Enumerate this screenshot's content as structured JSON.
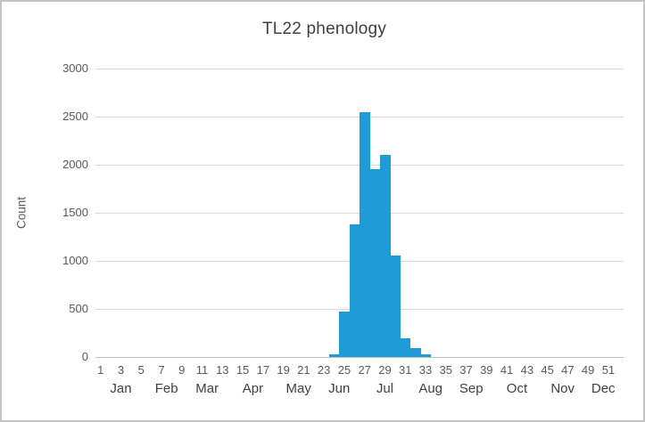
{
  "chart_data": {
    "type": "bar",
    "title": "TL22 phenology",
    "xlabel": "",
    "ylabel": "Count",
    "ylim": [
      0,
      3000
    ],
    "ytick_step": 500,
    "y_tick_labels": [
      "0",
      "500",
      "1000",
      "1500",
      "2000",
      "2500",
      "3000"
    ],
    "grid": "horizontal",
    "legend": "none",
    "bar_gap": 0,
    "bar_color": "#1f9cd7",
    "categories": [
      1,
      2,
      3,
      4,
      5,
      6,
      7,
      8,
      9,
      10,
      11,
      12,
      13,
      14,
      15,
      16,
      17,
      18,
      19,
      20,
      21,
      22,
      23,
      24,
      25,
      26,
      27,
      28,
      29,
      30,
      31,
      32,
      33,
      34,
      35,
      36,
      37,
      38,
      39,
      40,
      41,
      42,
      43,
      44,
      45,
      46,
      47,
      48,
      49,
      50,
      51,
      52
    ],
    "values": [
      0,
      0,
      0,
      0,
      0,
      0,
      0,
      0,
      0,
      0,
      0,
      0,
      0,
      0,
      0,
      0,
      0,
      0,
      0,
      0,
      0,
      0,
      0,
      25,
      470,
      1380,
      2550,
      1950,
      2100,
      1060,
      195,
      90,
      30,
      0,
      0,
      0,
      0,
      0,
      0,
      0,
      0,
      0,
      0,
      0,
      0,
      0,
      0,
      0,
      0,
      0,
      0,
      0
    ],
    "x_tick_labels": [
      "1",
      "3",
      "5",
      "7",
      "9",
      "11",
      "13",
      "15",
      "17",
      "19",
      "21",
      "23",
      "25",
      "27",
      "29",
      "31",
      "33",
      "35",
      "37",
      "39",
      "41",
      "43",
      "45",
      "47",
      "49",
      "51"
    ],
    "month_labels": [
      "Jan",
      "Feb",
      "Mar",
      "Apr",
      "May",
      "Jun",
      "Jul",
      "Aug",
      "Sep",
      "Oct",
      "Nov",
      "Dec"
    ],
    "colors": {
      "bar": "#1f9cd7",
      "gridline": "#d9d9d9",
      "axis_line": "#bfbfbf",
      "title_text": "#404040",
      "tick_text": "#595959",
      "month_text": "#404040"
    }
  }
}
